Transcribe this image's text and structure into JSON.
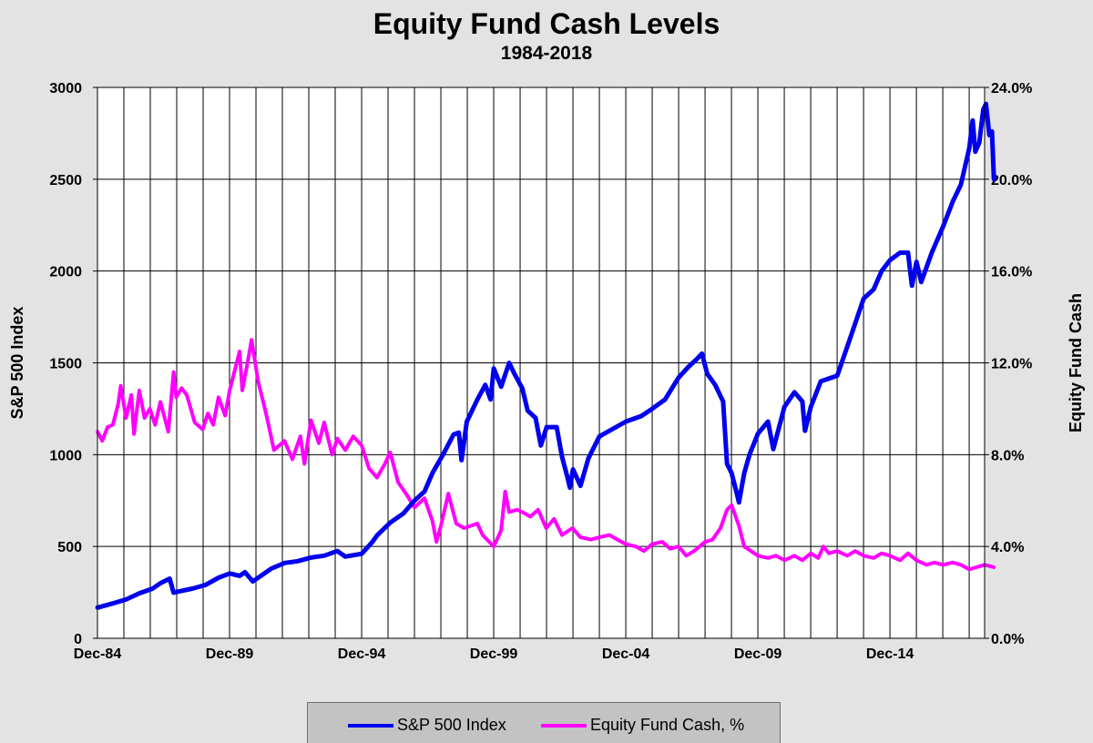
{
  "title": "Equity Fund Cash Levels",
  "subtitle": "1984-2018",
  "colors": {
    "sp500": "#0000ee",
    "cash": "#ff00ff",
    "background": "#e3e3e3",
    "plot_background": "#ffffff",
    "grid": "#000000"
  },
  "legend": {
    "sp500_label": "S&P 500 Index",
    "cash_label": "Equity Fund Cash, %"
  },
  "chart_data": {
    "type": "line",
    "title": "Equity Fund Cash Levels",
    "subtitle": "1984-2018",
    "ylabel": "S&P 500 Index",
    "y2label": "Equity Fund Cash",
    "xlim": [
      1984.917,
      2018.5
    ],
    "ylim": [
      0,
      3000
    ],
    "y2lim": [
      0,
      24
    ],
    "y_ticks": [
      "0",
      "500",
      "1000",
      "1500",
      "2000",
      "2500",
      "3000"
    ],
    "y2_ticks": [
      "0.0%",
      "4.0%",
      "8.0%",
      "12.0%",
      "16.0%",
      "20.0%",
      "24.0%"
    ],
    "x_ticks": [
      {
        "label": "Dec-84",
        "x": 1984.917
      },
      {
        "label": "Dec-89",
        "x": 1989.917
      },
      {
        "label": "Dec-94",
        "x": 1994.917
      },
      {
        "label": "Dec-99",
        "x": 1999.917
      },
      {
        "label": "Dec-04",
        "x": 2004.917
      },
      {
        "label": "Dec-09",
        "x": 2009.917
      },
      {
        "label": "Dec-14",
        "x": 2014.917
      }
    ],
    "grid": true,
    "legend_position": "bottom",
    "series": [
      {
        "name": "S&P 500 Index",
        "axis": "left",
        "points": [
          [
            1984.92,
            167
          ],
          [
            1985.5,
            190
          ],
          [
            1986.0,
            211
          ],
          [
            1986.5,
            245
          ],
          [
            1987.0,
            270
          ],
          [
            1987.3,
            300
          ],
          [
            1987.65,
            325
          ],
          [
            1987.8,
            248
          ],
          [
            1988.0,
            255
          ],
          [
            1988.5,
            270
          ],
          [
            1989.0,
            290
          ],
          [
            1989.5,
            330
          ],
          [
            1989.92,
            353
          ],
          [
            1990.3,
            340
          ],
          [
            1990.5,
            360
          ],
          [
            1990.8,
            310
          ],
          [
            1991.0,
            330
          ],
          [
            1991.5,
            380
          ],
          [
            1992.0,
            410
          ],
          [
            1992.5,
            420
          ],
          [
            1993.0,
            440
          ],
          [
            1993.5,
            450
          ],
          [
            1994.0,
            475
          ],
          [
            1994.3,
            445
          ],
          [
            1994.92,
            460
          ],
          [
            1995.3,
            520
          ],
          [
            1995.5,
            560
          ],
          [
            1996.0,
            630
          ],
          [
            1996.5,
            680
          ],
          [
            1996.92,
            750
          ],
          [
            1997.3,
            800
          ],
          [
            1997.6,
            900
          ],
          [
            1997.8,
            950
          ],
          [
            1998.0,
            1000
          ],
          [
            1998.4,
            1110
          ],
          [
            1998.6,
            1120
          ],
          [
            1998.7,
            970
          ],
          [
            1998.9,
            1180
          ],
          [
            1999.3,
            1300
          ],
          [
            1999.6,
            1380
          ],
          [
            1999.8,
            1300
          ],
          [
            1999.92,
            1470
          ],
          [
            2000.2,
            1370
          ],
          [
            2000.5,
            1500
          ],
          [
            2000.7,
            1440
          ],
          [
            2001.0,
            1360
          ],
          [
            2001.2,
            1240
          ],
          [
            2001.5,
            1200
          ],
          [
            2001.7,
            1050
          ],
          [
            2001.92,
            1150
          ],
          [
            2002.3,
            1150
          ],
          [
            2002.5,
            990
          ],
          [
            2002.7,
            880
          ],
          [
            2002.8,
            820
          ],
          [
            2002.92,
            920
          ],
          [
            2003.2,
            830
          ],
          [
            2003.5,
            980
          ],
          [
            2003.92,
            1100
          ],
          [
            2004.3,
            1130
          ],
          [
            2004.92,
            1180
          ],
          [
            2005.5,
            1210
          ],
          [
            2005.92,
            1250
          ],
          [
            2006.4,
            1300
          ],
          [
            2006.92,
            1420
          ],
          [
            2007.3,
            1480
          ],
          [
            2007.6,
            1520
          ],
          [
            2007.8,
            1550
          ],
          [
            2008.0,
            1440
          ],
          [
            2008.3,
            1380
          ],
          [
            2008.6,
            1290
          ],
          [
            2008.75,
            950
          ],
          [
            2008.92,
            900
          ],
          [
            2009.1,
            800
          ],
          [
            2009.2,
            740
          ],
          [
            2009.4,
            900
          ],
          [
            2009.6,
            1000
          ],
          [
            2009.92,
            1115
          ],
          [
            2010.3,
            1180
          ],
          [
            2010.5,
            1030
          ],
          [
            2010.92,
            1260
          ],
          [
            2011.3,
            1340
          ],
          [
            2011.6,
            1290
          ],
          [
            2011.7,
            1130
          ],
          [
            2011.92,
            1260
          ],
          [
            2012.3,
            1400
          ],
          [
            2012.92,
            1430
          ],
          [
            2013.4,
            1630
          ],
          [
            2013.92,
            1850
          ],
          [
            2014.3,
            1900
          ],
          [
            2014.6,
            2000
          ],
          [
            2014.92,
            2060
          ],
          [
            2015.3,
            2100
          ],
          [
            2015.6,
            2100
          ],
          [
            2015.75,
            1920
          ],
          [
            2015.92,
            2050
          ],
          [
            2016.1,
            1940
          ],
          [
            2016.5,
            2100
          ],
          [
            2016.92,
            2240
          ],
          [
            2017.3,
            2380
          ],
          [
            2017.6,
            2470
          ],
          [
            2017.92,
            2670
          ],
          [
            2018.05,
            2820
          ],
          [
            2018.15,
            2650
          ],
          [
            2018.3,
            2700
          ],
          [
            2018.45,
            2880
          ],
          [
            2018.55,
            2910
          ],
          [
            2018.68,
            2740
          ],
          [
            2018.78,
            2760
          ],
          [
            2018.85,
            2500
          ]
        ]
      },
      {
        "name": "Equity Fund Cash, %",
        "axis": "right",
        "points": [
          [
            1984.92,
            9.0
          ],
          [
            1985.1,
            8.6
          ],
          [
            1985.3,
            9.2
          ],
          [
            1985.5,
            9.3
          ],
          [
            1985.7,
            10.2
          ],
          [
            1985.8,
            11.0
          ],
          [
            1986.0,
            9.6
          ],
          [
            1986.2,
            10.6
          ],
          [
            1986.3,
            8.9
          ],
          [
            1986.5,
            10.8
          ],
          [
            1986.7,
            9.6
          ],
          [
            1986.9,
            10.0
          ],
          [
            1987.1,
            9.3
          ],
          [
            1987.3,
            10.3
          ],
          [
            1987.6,
            9.0
          ],
          [
            1987.8,
            11.6
          ],
          [
            1987.9,
            10.5
          ],
          [
            1988.1,
            10.9
          ],
          [
            1988.3,
            10.6
          ],
          [
            1988.6,
            9.4
          ],
          [
            1988.9,
            9.1
          ],
          [
            1989.1,
            9.8
          ],
          [
            1989.3,
            9.3
          ],
          [
            1989.5,
            10.5
          ],
          [
            1989.75,
            9.7
          ],
          [
            1989.92,
            10.8
          ],
          [
            1990.3,
            12.5
          ],
          [
            1990.4,
            10.8
          ],
          [
            1990.6,
            12.0
          ],
          [
            1990.75,
            13.0
          ],
          [
            1991.0,
            11.2
          ],
          [
            1991.3,
            9.8
          ],
          [
            1991.6,
            8.2
          ],
          [
            1992.0,
            8.6
          ],
          [
            1992.3,
            7.8
          ],
          [
            1992.6,
            8.8
          ],
          [
            1992.75,
            7.6
          ],
          [
            1993.0,
            9.5
          ],
          [
            1993.3,
            8.5
          ],
          [
            1993.5,
            9.4
          ],
          [
            1993.8,
            8.0
          ],
          [
            1994.0,
            8.7
          ],
          [
            1994.3,
            8.2
          ],
          [
            1994.6,
            8.8
          ],
          [
            1994.92,
            8.4
          ],
          [
            1995.2,
            7.4
          ],
          [
            1995.5,
            7.0
          ],
          [
            1995.8,
            7.6
          ],
          [
            1996.0,
            8.1
          ],
          [
            1996.3,
            6.8
          ],
          [
            1996.6,
            6.3
          ],
          [
            1996.92,
            5.7
          ],
          [
            1997.3,
            6.1
          ],
          [
            1997.6,
            5.1
          ],
          [
            1997.75,
            4.2
          ],
          [
            1997.92,
            4.9
          ],
          [
            1998.2,
            6.3
          ],
          [
            1998.5,
            5.0
          ],
          [
            1998.8,
            4.8
          ],
          [
            1999.3,
            5.0
          ],
          [
            1999.5,
            4.5
          ],
          [
            1999.92,
            4.0
          ],
          [
            2000.2,
            4.7
          ],
          [
            2000.35,
            6.4
          ],
          [
            2000.5,
            5.5
          ],
          [
            2000.8,
            5.6
          ],
          [
            2001.0,
            5.5
          ],
          [
            2001.3,
            5.3
          ],
          [
            2001.6,
            5.6
          ],
          [
            2001.9,
            4.8
          ],
          [
            2002.2,
            5.2
          ],
          [
            2002.5,
            4.5
          ],
          [
            2002.9,
            4.8
          ],
          [
            2003.2,
            4.4
          ],
          [
            2003.6,
            4.3
          ],
          [
            2003.92,
            4.4
          ],
          [
            2004.3,
            4.5
          ],
          [
            2004.6,
            4.3
          ],
          [
            2004.92,
            4.1
          ],
          [
            2005.3,
            4.0
          ],
          [
            2005.6,
            3.8
          ],
          [
            2005.92,
            4.1
          ],
          [
            2006.3,
            4.2
          ],
          [
            2006.6,
            3.9
          ],
          [
            2006.92,
            4.0
          ],
          [
            2007.2,
            3.6
          ],
          [
            2007.5,
            3.8
          ],
          [
            2007.92,
            4.2
          ],
          [
            2008.2,
            4.3
          ],
          [
            2008.5,
            4.8
          ],
          [
            2008.75,
            5.6
          ],
          [
            2008.92,
            5.8
          ],
          [
            2009.2,
            4.9
          ],
          [
            2009.4,
            4.0
          ],
          [
            2009.92,
            3.6
          ],
          [
            2010.3,
            3.5
          ],
          [
            2010.6,
            3.6
          ],
          [
            2010.92,
            3.4
          ],
          [
            2011.3,
            3.6
          ],
          [
            2011.6,
            3.4
          ],
          [
            2011.92,
            3.7
          ],
          [
            2012.2,
            3.5
          ],
          [
            2012.4,
            4.0
          ],
          [
            2012.6,
            3.7
          ],
          [
            2012.92,
            3.8
          ],
          [
            2013.3,
            3.6
          ],
          [
            2013.6,
            3.8
          ],
          [
            2013.92,
            3.6
          ],
          [
            2014.3,
            3.5
          ],
          [
            2014.6,
            3.7
          ],
          [
            2014.92,
            3.6
          ],
          [
            2015.3,
            3.4
          ],
          [
            2015.6,
            3.7
          ],
          [
            2015.92,
            3.4
          ],
          [
            2016.3,
            3.2
          ],
          [
            2016.6,
            3.3
          ],
          [
            2016.92,
            3.2
          ],
          [
            2017.3,
            3.3
          ],
          [
            2017.6,
            3.2
          ],
          [
            2017.92,
            3.0
          ],
          [
            2018.2,
            3.1
          ],
          [
            2018.5,
            3.2
          ],
          [
            2018.85,
            3.1
          ]
        ]
      }
    ]
  }
}
